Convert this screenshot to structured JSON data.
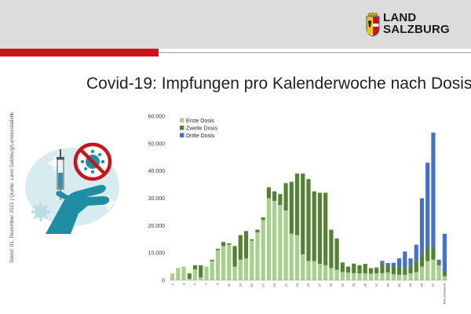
{
  "header": {
    "logo_line1": "LAND",
    "logo_line2": "SALZBURG"
  },
  "title": "Covid-19: Impfungen pro Kalenderwoche nach Dosis",
  "side_note": "Stand: 01. Dezember 2021  |  Quelle: Land Salzburg/Landesstatistik",
  "colors": {
    "brand_red": "#c8151c",
    "erste": "#a8d08d",
    "zweite": "#548235",
    "dritte": "#4472c4"
  },
  "chart_data": {
    "type": "bar",
    "stacked": true,
    "title": "",
    "xlabel": "",
    "ylabel": "",
    "ylim": [
      0,
      60000
    ],
    "yticks": [
      "0",
      "10.000",
      "20.000",
      "30.000",
      "40.000",
      "50.000",
      "60.000"
    ],
    "grid": false,
    "legend_position": "top-left",
    "categories": [
      "1",
      "2",
      "3",
      "4",
      "5",
      "6",
      "7",
      "8",
      "9",
      "10",
      "11",
      "12",
      "13",
      "14",
      "15",
      "16",
      "17",
      "18",
      "19",
      "20",
      "21",
      "22",
      "23",
      "24",
      "25",
      "26",
      "27",
      "28",
      "29",
      "30",
      "31",
      "32",
      "33",
      "34",
      "35",
      "36",
      "37",
      "38",
      "39",
      "40",
      "41",
      "42",
      "43",
      "44",
      "45",
      "46",
      "47",
      "48",
      "KW unbekannt"
    ],
    "xtick_labels": [
      "1",
      "3",
      "5",
      "7",
      "9",
      "11",
      "13",
      "15",
      "17",
      "19",
      "21",
      "23",
      "25",
      "27",
      "29",
      "31",
      "33",
      "35",
      "37",
      "39",
      "41",
      "43",
      "45",
      "47",
      "KW unbekannt"
    ],
    "series": [
      {
        "name": "Erste Dosis",
        "color": "#a8d08d",
        "values": [
          2500,
          4500,
          5000,
          500,
          4000,
          1000,
          5000,
          7000,
          11000,
          12500,
          13000,
          5000,
          7500,
          8000,
          14500,
          17500,
          22000,
          30000,
          29000,
          27500,
          25500,
          17000,
          16500,
          9500,
          7000,
          7000,
          6000,
          5500,
          4500,
          3800,
          3000,
          2800,
          2600,
          2500,
          2500,
          2400,
          2500,
          2600,
          2800,
          2200,
          2000,
          2000,
          2500,
          3000,
          5000,
          7000,
          7500,
          5500,
          1500
        ]
      },
      {
        "name": "Zweite Dosis",
        "color": "#548235",
        "values": [
          0,
          0,
          0,
          2000,
          1500,
          4500,
          0,
          500,
          500,
          1500,
          500,
          7500,
          9000,
          10000,
          500,
          1000,
          1000,
          4000,
          3500,
          4000,
          10000,
          19000,
          22500,
          29500,
          30000,
          25500,
          26000,
          26500,
          14000,
          11500,
          3500,
          2200,
          3500,
          3000,
          3500,
          2000,
          2000,
          3500,
          2500,
          2700,
          3000,
          2500,
          3000,
          4000,
          4500,
          5000,
          4500,
          1000,
          1500
        ]
      },
      {
        "name": "Dritte Dosis",
        "color": "#4472c4",
        "values": [
          0,
          0,
          0,
          0,
          0,
          0,
          0,
          0,
          0,
          0,
          0,
          0,
          0,
          0,
          0,
          0,
          0,
          0,
          0,
          0,
          0,
          0,
          0,
          0,
          0,
          0,
          0,
          0,
          0,
          0,
          0,
          0,
          0,
          0,
          0,
          0,
          200,
          1000,
          1000,
          1500,
          3000,
          6000,
          2500,
          6000,
          20500,
          31000,
          42000,
          1000,
          14000
        ]
      }
    ]
  }
}
